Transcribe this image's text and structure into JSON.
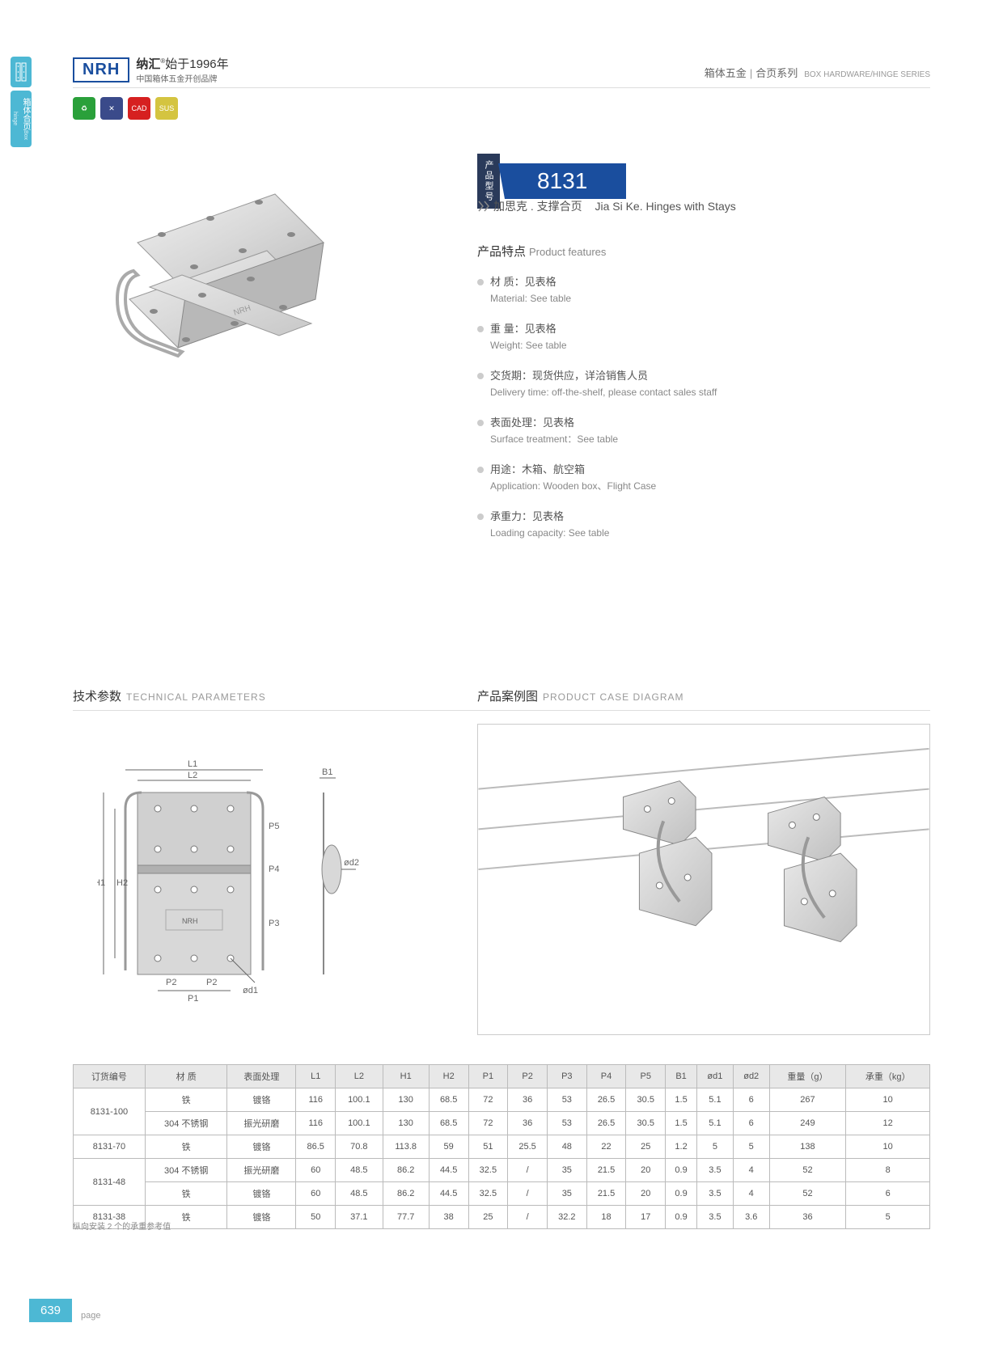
{
  "header": {
    "brand_box": "NRH",
    "brand_cn": "纳汇",
    "brand_year": "始于1996年",
    "brand_sub": "中国箱体五金开创品牌",
    "reg": "®",
    "cat_cn1": "箱体五金",
    "cat_cn2": "合页系列",
    "cat_en": "BOX HARDWARE/HINGE SERIES"
  },
  "side": {
    "tab2_cn": "箱体合页",
    "tab2_en": "Box hinge"
  },
  "icons": {
    "i1": "♻",
    "i2": "✕",
    "i3": "CAD",
    "i4": "SUS"
  },
  "model": {
    "label": "产品型号",
    "num": "8131",
    "sub_cn": "加思克 . 支撑合页",
    "sub_en": "Jia Si Ke. Hinges with Stays"
  },
  "features": {
    "title_cn": "产品特点",
    "title_en": "Product features",
    "items": [
      {
        "cn": "材 质：见表格",
        "en": "Material: See table"
      },
      {
        "cn": "重 量：见表格",
        "en": "Weight: See table"
      },
      {
        "cn": "交货期：现货供应，详洽销售人员",
        "en": "Delivery time: off-the-shelf, please contact sales staff"
      },
      {
        "cn": "表面处理：见表格",
        "en": "Surface treatment：See table"
      },
      {
        "cn": "用途：木箱、航空箱",
        "en": "Application: Wooden box、Flight Case"
      },
      {
        "cn": "承重力：见表格",
        "en": "Loading capacity: See table"
      }
    ]
  },
  "sections": {
    "tech_cn": "技术参数",
    "tech_en": "TECHNICAL PARAMETERS",
    "case_cn": "产品案例图",
    "case_en": "PRODUCT CASE DIAGRAM"
  },
  "diagram_labels": {
    "L1": "L1",
    "L2": "L2",
    "H1": "H1",
    "H2": "H2",
    "P1": "P1",
    "P2": "P2",
    "P2b": "P2",
    "P3": "P3",
    "P4": "P4",
    "P5": "P5",
    "B1": "B1",
    "od1": "ød1",
    "od2": "ød2",
    "brand": "NRH"
  },
  "table": {
    "headers": [
      "订货编号",
      "材 质",
      "表面处理",
      "L1",
      "L2",
      "H1",
      "H2",
      "P1",
      "P2",
      "P3",
      "P4",
      "P5",
      "B1",
      "ød1",
      "ød2",
      "重量（g）",
      "承重（kg）"
    ],
    "rows": [
      {
        "code": "8131-100",
        "rowspan": 2,
        "cells": [
          [
            "铁",
            "镀铬",
            "116",
            "100.1",
            "130",
            "68.5",
            "72",
            "36",
            "53",
            "26.5",
            "30.5",
            "1.5",
            "5.1",
            "6",
            "267",
            "10"
          ],
          [
            "304 不锈钢",
            "振光研磨",
            "116",
            "100.1",
            "130",
            "68.5",
            "72",
            "36",
            "53",
            "26.5",
            "30.5",
            "1.5",
            "5.1",
            "6",
            "249",
            "12"
          ]
        ]
      },
      {
        "code": "8131-70",
        "rowspan": 1,
        "cells": [
          [
            "铁",
            "镀铬",
            "86.5",
            "70.8",
            "113.8",
            "59",
            "51",
            "25.5",
            "48",
            "22",
            "25",
            "1.2",
            "5",
            "5",
            "138",
            "10"
          ]
        ]
      },
      {
        "code": "8131-48",
        "rowspan": 2,
        "cells": [
          [
            "304 不锈钢",
            "振光研磨",
            "60",
            "48.5",
            "86.2",
            "44.5",
            "32.5",
            "/",
            "35",
            "21.5",
            "20",
            "0.9",
            "3.5",
            "4",
            "52",
            "8"
          ],
          [
            "铁",
            "镀铬",
            "60",
            "48.5",
            "86.2",
            "44.5",
            "32.5",
            "/",
            "35",
            "21.5",
            "20",
            "0.9",
            "3.5",
            "4",
            "52",
            "6"
          ]
        ]
      },
      {
        "code": "8131-38",
        "rowspan": 1,
        "cells": [
          [
            "铁",
            "镀铬",
            "50",
            "37.1",
            "77.7",
            "38",
            "25",
            "/",
            "32.2",
            "18",
            "17",
            "0.9",
            "3.5",
            "3.6",
            "36",
            "5"
          ]
        ]
      }
    ],
    "note": "纵向安装 2 个的承重参考值"
  },
  "footer": {
    "page": "639",
    "label": "page"
  }
}
